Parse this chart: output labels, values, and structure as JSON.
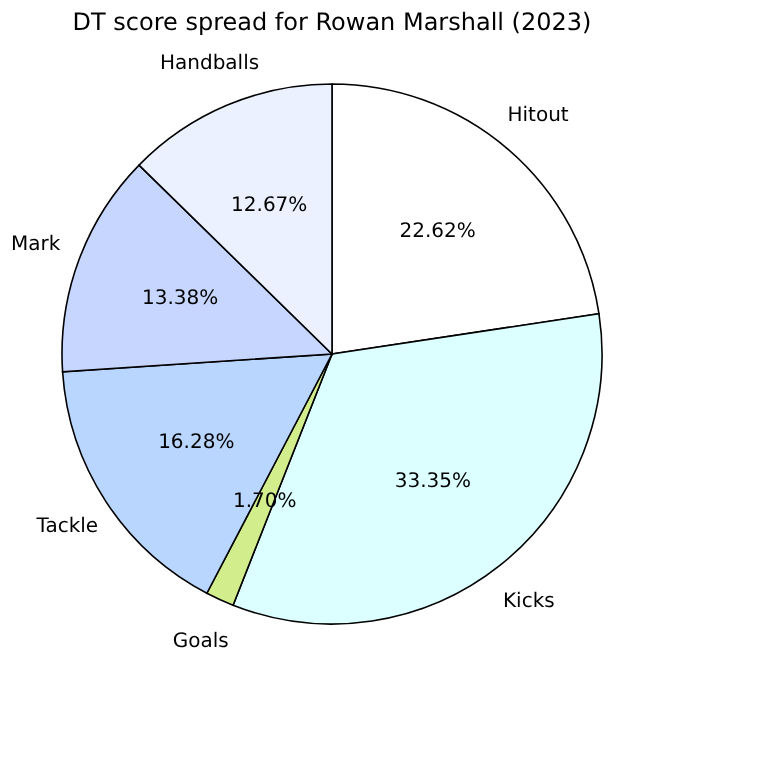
{
  "chart_data": {
    "type": "pie",
    "title": "DT score spread for Rowan Marshall (2023)",
    "categories": [
      "Hitout",
      "Kicks",
      "Goals",
      "Tackle",
      "Mark",
      "Handballs"
    ],
    "values": [
      22.62,
      33.35,
      1.7,
      16.28,
      13.38,
      12.67
    ],
    "value_labels": [
      "22.62%",
      "33.35%",
      "1.70%",
      "16.28%",
      "13.38%",
      "12.67%"
    ],
    "colors": [
      "#ffffff",
      "#dcffff",
      "#d2ee8c",
      "#b8d6ff",
      "#c7d6ff",
      "#ebf1ff"
    ],
    "legend": false
  }
}
